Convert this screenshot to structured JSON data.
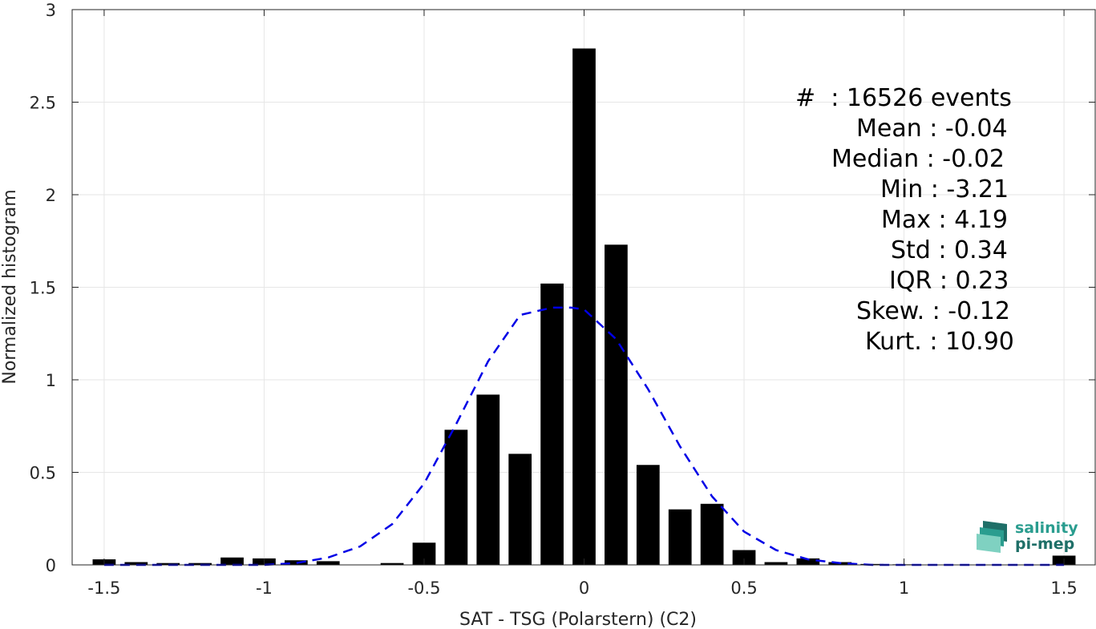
{
  "chart_data": {
    "type": "bar",
    "xlabel": "SAT - TSG (Polarstern) (C2)",
    "ylabel": "Normalized histogram",
    "xlim": [
      -1.6,
      1.6
    ],
    "ylim": [
      0,
      3
    ],
    "xticks": [
      "-1.5",
      "-1",
      "-0.5",
      "0",
      "0.5",
      "1",
      "1.5"
    ],
    "xtick_values": [
      -1.5,
      -1,
      -0.5,
      0,
      0.5,
      1,
      1.5
    ],
    "yticks": [
      "0",
      "0.5",
      "1",
      "1.5",
      "2",
      "2.5",
      "3"
    ],
    "ytick_values": [
      0,
      0.5,
      1,
      1.5,
      2,
      2.5,
      3
    ],
    "grid": true,
    "bin_centers": [
      -1.5,
      -1.4,
      -1.3,
      -1.2,
      -1.1,
      -1.0,
      -0.9,
      -0.8,
      -0.7,
      -0.6,
      -0.5,
      -0.4,
      -0.3,
      -0.2,
      -0.1,
      0.0,
      0.1,
      0.2,
      0.3,
      0.4,
      0.5,
      0.6,
      0.7,
      0.8,
      0.9,
      1.0,
      1.1,
      1.2,
      1.3,
      1.4,
      1.5
    ],
    "values": [
      0.03,
      0.015,
      0.01,
      0.01,
      0.04,
      0.035,
      0.025,
      0.02,
      0.0,
      0.01,
      0.12,
      0.73,
      0.92,
      0.6,
      1.52,
      2.79,
      1.73,
      0.54,
      0.3,
      0.33,
      0.08,
      0.015,
      0.035,
      0.015,
      0.005,
      0.003,
      0.0,
      0.0,
      0.0,
      0.0,
      0.05
    ],
    "bar_color": "#000000",
    "fit_curve": {
      "style": "dashed",
      "color": "#0000e6",
      "x": [
        -1.5,
        -1.4,
        -1.3,
        -1.2,
        -1.1,
        -1.0,
        -0.9,
        -0.8,
        -0.7,
        -0.6,
        -0.5,
        -0.4,
        -0.3,
        -0.2,
        -0.1,
        -0.04,
        0.0,
        0.1,
        0.2,
        0.3,
        0.4,
        0.5,
        0.6,
        0.7,
        0.8,
        0.9,
        1.0,
        1.1,
        1.2,
        1.3,
        1.4,
        1.5
      ],
      "y": [
        0.0,
        0.0,
        0.0,
        0.0,
        0.0,
        0.0,
        0.01,
        0.04,
        0.1,
        0.22,
        0.44,
        0.76,
        1.1,
        1.35,
        1.39,
        1.39,
        1.38,
        1.22,
        0.95,
        0.64,
        0.37,
        0.18,
        0.08,
        0.03,
        0.01,
        0.0,
        0.0,
        0.0,
        0.0,
        0.0,
        0.0,
        0.0
      ]
    }
  },
  "stats": [
    "#  : 16526 events",
    "Mean : -0.04",
    "Median : -0.02",
    "Min : -3.21",
    "Max : 4.19",
    "Std : 0.34",
    "IQR : 0.23",
    "Skew. : -0.12",
    "Kurt. : 10.90"
  ],
  "logo": {
    "line1": "salinity",
    "line2": "pi-mep",
    "colors": [
      "#2a9d8f",
      "#1f6f68",
      "#7fd1c1"
    ]
  }
}
